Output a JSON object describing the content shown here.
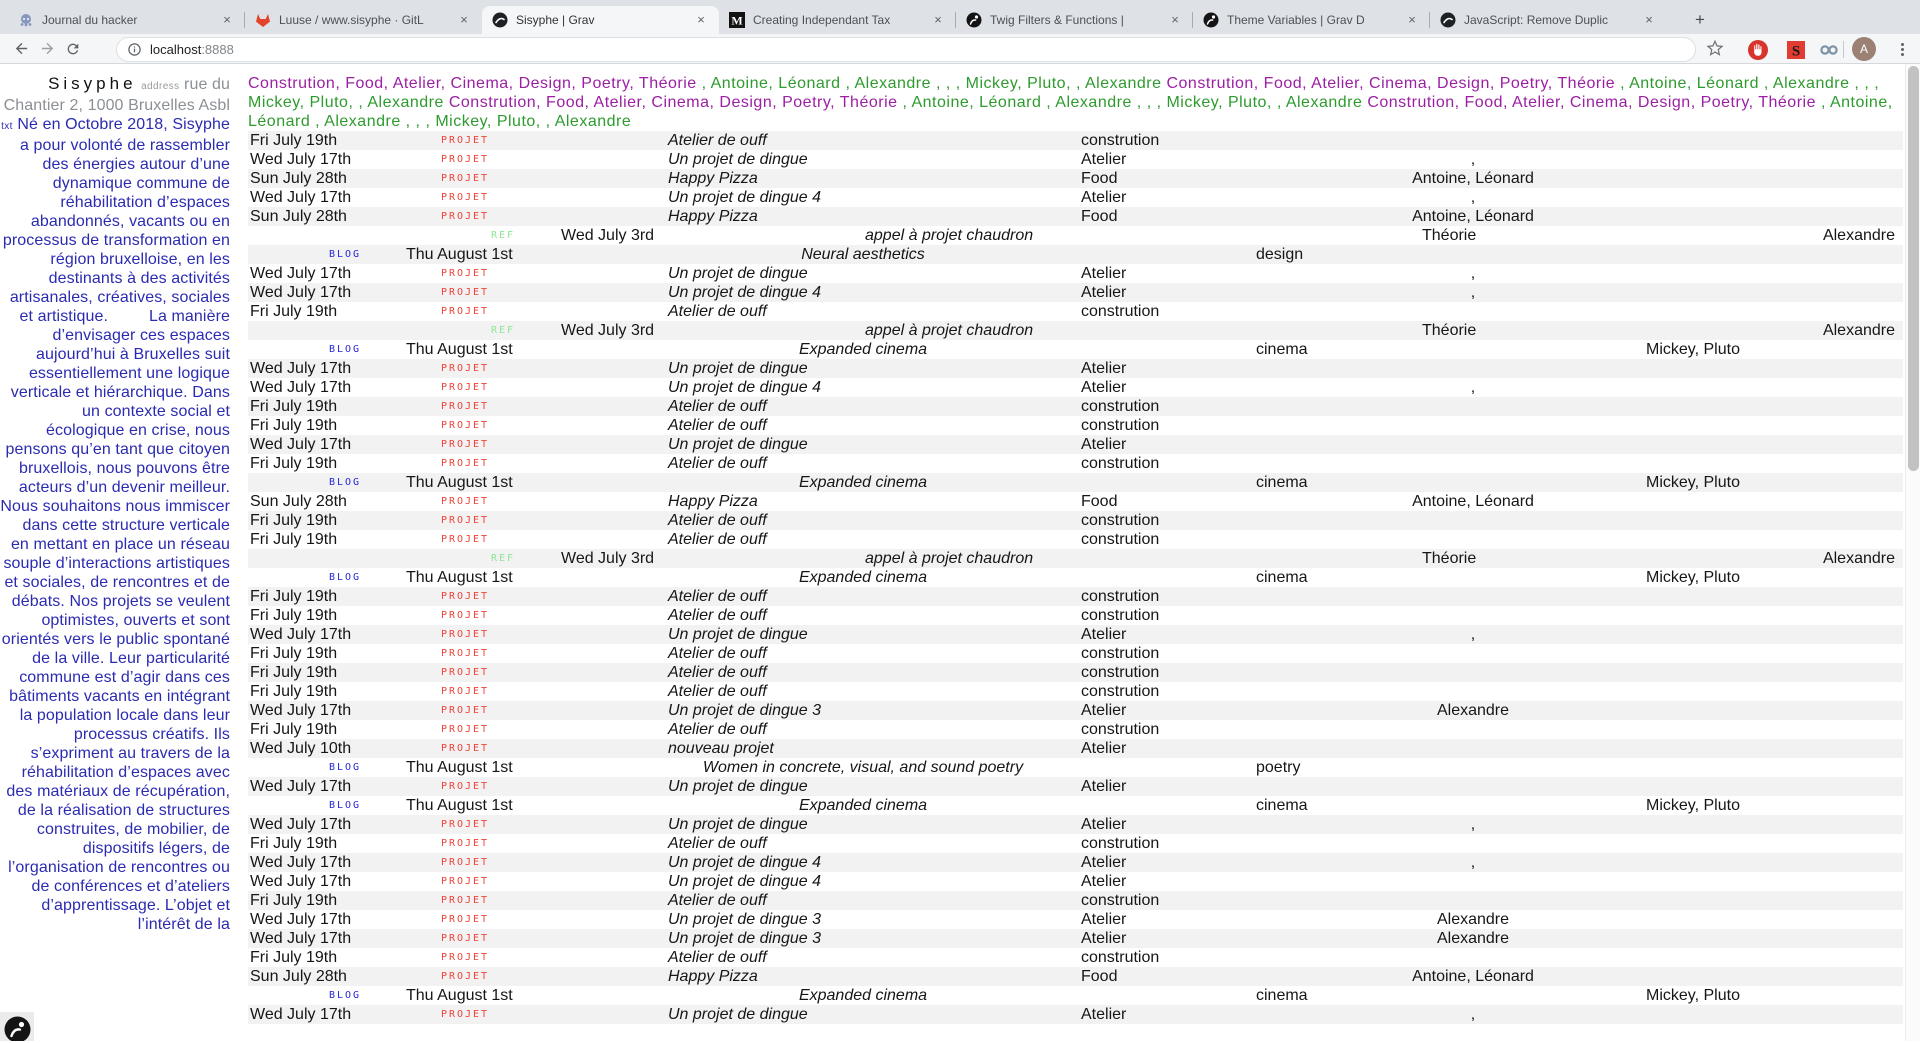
{
  "browser": {
    "tabs": [
      {
        "title": "Journal du hacker",
        "icon": "octopus-favicon",
        "active": false
      },
      {
        "title": "Luuse / www.sisyphe · GitL",
        "icon": "gitlab-favicon",
        "active": false
      },
      {
        "title": "Sisyphe | Grav",
        "icon": "globe-favicon",
        "active": true
      },
      {
        "title": "Creating Independant Tax",
        "icon": "medium-favicon",
        "active": false
      },
      {
        "title": "Twig Filters & Functions |",
        "icon": "grav-favicon",
        "active": false
      },
      {
        "title": "Theme Variables | Grav D",
        "icon": "grav-favicon",
        "active": false
      },
      {
        "title": "JavaScript: Remove Duplic",
        "icon": "globe-favicon",
        "active": false
      }
    ],
    "new_tab_label": "+",
    "close_label": "×",
    "url": {
      "host": "localhost",
      "port": ":8888"
    },
    "avatar_initial": "A"
  },
  "site": {
    "title": "Sisyphe",
    "address_label": "address",
    "address": "rue du Chantier 2, 1000 Bruxelles Asbl",
    "txt_label": "txt",
    "description": "Né en Octobre 2018, Sisyphe a pour volonté de rassembler des énergies autour d’une dynamique commune de réhabilitation d’espaces abandonnés, vacants ou en processus de transformation en région bruxelloise, en les destinants à des activités artisanales, créatives, sociales et artistique.         La manière d’envisager ces espaces aujourd’hui à Bruxelles suit essentiellement une logique verticale et hiérarchique. Dans un contexte social et écologique en crise, nous pensons qu’en tant que citoyen bruxellois, nous pouvons être acteurs d’un devenir meilleur. Nous souhaitons nous immiscer dans cette structure verticale en mettant en place un réseau souple d’interactions artistiques et sociales, de rencontres et de débats. Nos projets se veulent optimistes, ouverts et sont orientés vers le public spontané de la ville. Leur particularité commune est d’agir dans ces bâtiments vacants en intégrant la population locale dans leur processus créatifs. Ils s’expriment au travers de la réhabilitation d’espaces avec des matériaux de récupération, de la réalisation de structures construites, de mobilier, de dispositifs légers, de l’organisation de rencontres ou de conférences et d’ateliers d’apprentissage. L’objet et l’intérêt de la",
    "taxonomy": "Constrution, Food, Atelier, Cinema, Design, Poetry, Théorie ",
    "authors_list": ", Antoine, Léonard , Alexandre , , , Mickey, Pluto, , Alexandre ",
    "header_repetitions": 4,
    "colors": {
      "taxonomy_purple": "#9c20a4",
      "authors_green": "#2e9b2e",
      "sidebar_blue": "#2b2bb2",
      "badge_projet_red": "#f0433a",
      "badge_ref_green": "#8fe596",
      "badge_blog_blue": "#2626d8",
      "stripe_gray": "#f2f2f2"
    }
  },
  "table": {
    "badges": {
      "projet": "PROJET",
      "ref": "REF",
      "blog": "BLOG"
    },
    "rows": [
      [
        "projet",
        "Fri July 19th",
        "Atelier de ouff",
        "constrution",
        ""
      ],
      [
        "projet",
        "Wed July 17th",
        "Un projet de dingue",
        "Atelier",
        ","
      ],
      [
        "projet",
        "Sun July 28th",
        "Happy Pizza",
        "Food",
        "Antoine, Léonard"
      ],
      [
        "projet",
        "Wed July 17th",
        "Un projet de dingue 4",
        "Atelier",
        ","
      ],
      [
        "projet",
        "Sun July 28th",
        "Happy Pizza",
        "Food",
        "Antoine, Léonard"
      ],
      [
        "ref",
        "Wed July 3rd",
        "appel à projet chaudron",
        "Théorie",
        "Alexandre"
      ],
      [
        "blog",
        "Thu August 1st",
        "Neural aesthetics",
        "design",
        ""
      ],
      [
        "projet",
        "Wed July 17th",
        "Un projet de dingue",
        "Atelier",
        ","
      ],
      [
        "projet",
        "Wed July 17th",
        "Un projet de dingue 4",
        "Atelier",
        ","
      ],
      [
        "projet",
        "Fri July 19th",
        "Atelier de ouff",
        "constrution",
        ""
      ],
      [
        "ref",
        "Wed July 3rd",
        "appel à projet chaudron",
        "Théorie",
        "Alexandre"
      ],
      [
        "blog",
        "Thu August 1st",
        "Expanded cinema",
        "cinema",
        "Mickey, Pluto"
      ],
      [
        "projet",
        "Wed July 17th",
        "Un projet de dingue",
        "Atelier",
        ""
      ],
      [
        "projet",
        "Wed July 17th",
        "Un projet de dingue 4",
        "Atelier",
        ","
      ],
      [
        "projet",
        "Fri July 19th",
        "Atelier de ouff",
        "constrution",
        ""
      ],
      [
        "projet",
        "Fri July 19th",
        "Atelier de ouff",
        "constrution",
        ""
      ],
      [
        "projet",
        "Wed July 17th",
        "Un projet de dingue",
        "Atelier",
        ""
      ],
      [
        "projet",
        "Fri July 19th",
        "Atelier de ouff",
        "constrution",
        ""
      ],
      [
        "blog",
        "Thu August 1st",
        "Expanded cinema",
        "cinema",
        "Mickey, Pluto"
      ],
      [
        "projet",
        "Sun July 28th",
        "Happy Pizza",
        "Food",
        "Antoine, Léonard"
      ],
      [
        "projet",
        "Fri July 19th",
        "Atelier de ouff",
        "constrution",
        ""
      ],
      [
        "projet",
        "Fri July 19th",
        "Atelier de ouff",
        "constrution",
        ""
      ],
      [
        "ref",
        "Wed July 3rd",
        "appel à projet chaudron",
        "Théorie",
        "Alexandre"
      ],
      [
        "blog",
        "Thu August 1st",
        "Expanded cinema",
        "cinema",
        "Mickey, Pluto"
      ],
      [
        "projet",
        "Fri July 19th",
        "Atelier de ouff",
        "constrution",
        ""
      ],
      [
        "projet",
        "Fri July 19th",
        "Atelier de ouff",
        "constrution",
        ""
      ],
      [
        "projet",
        "Wed July 17th",
        "Un projet de dingue",
        "Atelier",
        ","
      ],
      [
        "projet",
        "Fri July 19th",
        "Atelier de ouff",
        "constrution",
        ""
      ],
      [
        "projet",
        "Fri July 19th",
        "Atelier de ouff",
        "constrution",
        ""
      ],
      [
        "projet",
        "Fri July 19th",
        "Atelier de ouff",
        "constrution",
        ""
      ],
      [
        "projet",
        "Wed July 17th",
        "Un projet de dingue 3",
        "Atelier",
        "Alexandre"
      ],
      [
        "projet",
        "Fri July 19th",
        "Atelier de ouff",
        "constrution",
        ""
      ],
      [
        "projet",
        "Wed July 10th",
        "nouveau projet",
        "Atelier",
        ""
      ],
      [
        "blog",
        "Thu August 1st",
        "Women in concrete, visual, and sound poetry",
        "poetry",
        ""
      ],
      [
        "projet",
        "Wed July 17th",
        "Un projet de dingue",
        "Atelier",
        ""
      ],
      [
        "blog",
        "Thu August 1st",
        "Expanded cinema",
        "cinema",
        "Mickey, Pluto"
      ],
      [
        "projet",
        "Wed July 17th",
        "Un projet de dingue",
        "Atelier",
        ","
      ],
      [
        "projet",
        "Fri July 19th",
        "Atelier de ouff",
        "constrution",
        ""
      ],
      [
        "projet",
        "Wed July 17th",
        "Un projet de dingue 4",
        "Atelier",
        ","
      ],
      [
        "projet",
        "Wed July 17th",
        "Un projet de dingue 4",
        "Atelier",
        ""
      ],
      [
        "projet",
        "Fri July 19th",
        "Atelier de ouff",
        "constrution",
        ""
      ],
      [
        "projet",
        "Wed July 17th",
        "Un projet de dingue 3",
        "Atelier",
        "Alexandre"
      ],
      [
        "projet",
        "Wed July 17th",
        "Un projet de dingue 3",
        "Atelier",
        "Alexandre"
      ],
      [
        "projet",
        "Fri July 19th",
        "Atelier de ouff",
        "constrution",
        ""
      ],
      [
        "projet",
        "Sun July 28th",
        "Happy Pizza",
        "Food",
        "Antoine, Léonard"
      ],
      [
        "blog",
        "Thu August 1st",
        "Expanded cinema",
        "cinema",
        "Mickey, Pluto"
      ],
      [
        "projet",
        "Wed July 17th",
        "Un projet de dingue",
        "Atelier",
        ","
      ]
    ]
  }
}
